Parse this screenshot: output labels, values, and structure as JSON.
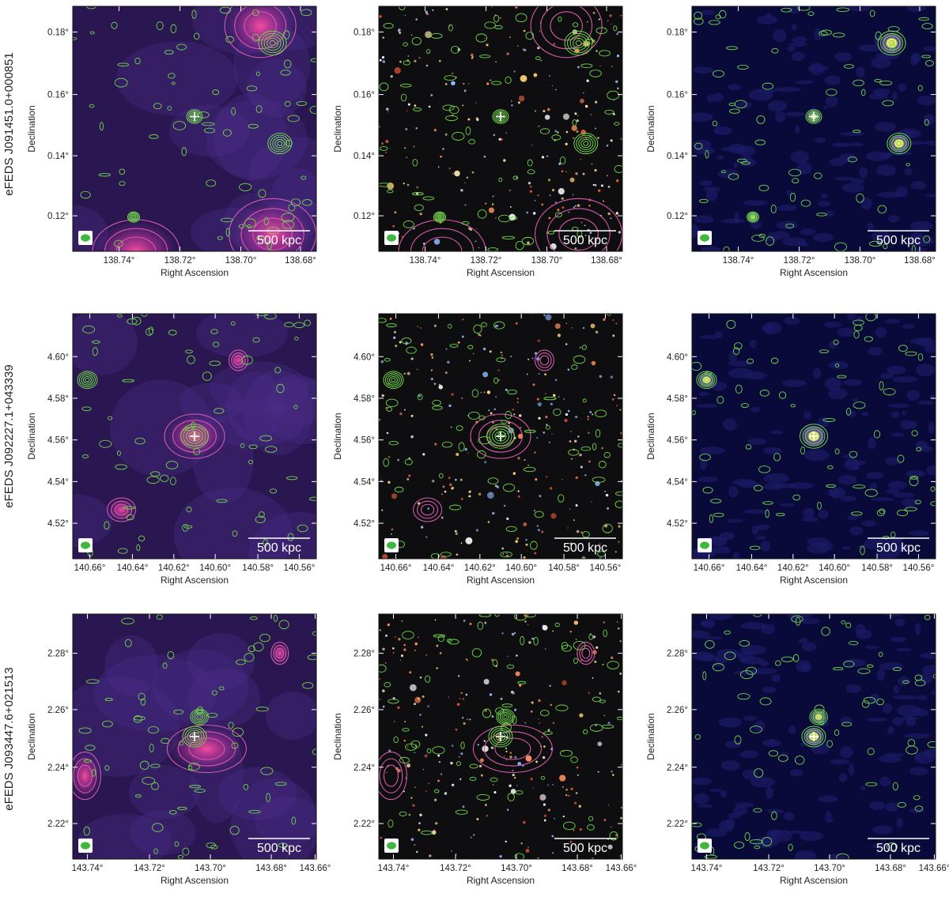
{
  "figure": {
    "rows": [
      {
        "label": "eFEDS J091451.0+000851",
        "dec_ticks": [
          "0.12°",
          "0.14°",
          "0.16°",
          "0.18°"
        ],
        "ra_ticks": [
          "138.74°",
          "138.72°",
          "138.70°",
          "138.68°"
        ]
      },
      {
        "label": "eFEDS J092227.1+043339",
        "dec_ticks": [
          "4.52°",
          "4.54°",
          "4.56°",
          "4.58°",
          "4.60°"
        ],
        "ra_ticks": [
          "140.66°",
          "140.64°",
          "140.62°",
          "140.60°",
          "140.58°",
          "140.56°"
        ]
      },
      {
        "label": "eFEDS J093447.6+021513",
        "dec_ticks": [
          "2.22°",
          "2.24°",
          "2.26°",
          "2.28°"
        ],
        "ra_ticks": [
          "143.74°",
          "143.72°",
          "143.70°",
          "143.68°",
          "143.66°"
        ]
      }
    ],
    "axis_labels": {
      "x": "Right Ascension",
      "y": "Declination"
    },
    "scale_bar": "500 kpc",
    "panel_types": [
      "x-ray",
      "optical",
      "radio"
    ],
    "colors": {
      "contour_radio": "#6fd64a",
      "contour_xray": "#d65aa8",
      "xray_background": "#2a1650",
      "optical_background": "#0e0d10",
      "radio_background": "#0a0a3a",
      "beam": "#3db83d"
    }
  }
}
